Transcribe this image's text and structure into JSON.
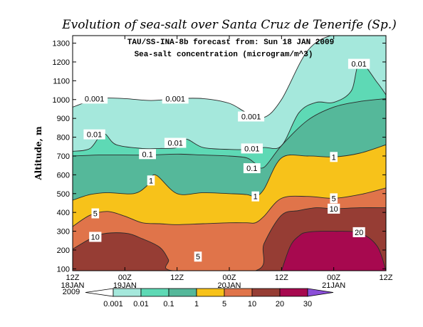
{
  "chart_data": {
    "type": "area",
    "title": "Evolution of sea-salt over Santa Cruz de Tenerife (Sp.)",
    "subtitle_1": "TAU/SS-INA-8b forecast from:  Sun 18 JAN 2009",
    "subtitle_2": "Sea-salt concentration (microgram/m^3)",
    "ylabel": "Altitude, m",
    "ylim": [
      90,
      1340
    ],
    "yticks": [
      "100",
      "200",
      "300",
      "400",
      "500",
      "600",
      "700",
      "800",
      "900",
      "1000",
      "1100",
      "1200",
      "1300"
    ],
    "xlim": [
      0,
      36
    ],
    "xticks": [
      {
        "x": 0,
        "top": "12Z",
        "bottom": "18JAN"
      },
      {
        "x": 6,
        "top": "00Z",
        "bottom": "19JAN"
      },
      {
        "x": 12,
        "top": "12Z",
        "bottom": ""
      },
      {
        "x": 18,
        "top": "00Z",
        "bottom": "20JAN"
      },
      {
        "x": 24,
        "top": "12Z",
        "bottom": ""
      },
      {
        "x": 30,
        "top": "00Z",
        "bottom": "21JAN"
      },
      {
        "x": 36,
        "top": "12Z",
        "bottom": ""
      }
    ],
    "year_label": "2009",
    "levels": [
      "0.001",
      "0.01",
      "0.1",
      "1",
      "5",
      "10",
      "20",
      "30"
    ],
    "level_colors": [
      "#ffffff",
      "#a5e8dc",
      "#5ed9b5",
      "#55b89a",
      "#f7c21a",
      "#e0744a",
      "#963d34",
      "#a7094f",
      "#8b4fd8"
    ],
    "contours": [
      {
        "level": "0.001",
        "color": "#a5e8dc",
        "x": [
          0,
          3,
          6,
          9,
          12,
          15,
          18,
          20,
          22,
          24,
          27,
          30,
          33,
          36
        ],
        "y": [
          960,
          1005,
          1005,
          995,
          1005,
          1005,
          980,
          930,
          905,
          1000,
          1260,
          1345,
          1345,
          1345
        ]
      },
      {
        "level": "0.01",
        "color": "#5ed9b5",
        "x": [
          0,
          2,
          3.5,
          5,
          8,
          10,
          12,
          13,
          15,
          18,
          20,
          22,
          24,
          26,
          28,
          30,
          32,
          33,
          35,
          36
        ],
        "y": [
          725,
          740,
          820,
          760,
          740,
          740,
          745,
          790,
          745,
          735,
          735,
          745,
          755,
          930,
          985,
          985,
          1045,
          1195,
          1090,
          1025
        ]
      },
      {
        "level": "0.1",
        "color": "#55b89a",
        "x": [
          0,
          3,
          6,
          9,
          12,
          15,
          18,
          20,
          21,
          22,
          24,
          27,
          30,
          33,
          36
        ],
        "y": [
          700,
          705,
          705,
          705,
          710,
          705,
          700,
          690,
          660,
          640,
          755,
          890,
          960,
          990,
          1005
        ]
      },
      {
        "level": "1",
        "color": "#f7c21a",
        "x": [
          0,
          2,
          4,
          7,
          8.5,
          9.5,
          12,
          15,
          18,
          20,
          21,
          22,
          24,
          27,
          30,
          33,
          36
        ],
        "y": [
          465,
          495,
          505,
          500,
          540,
          600,
          500,
          505,
          500,
          495,
          485,
          525,
          690,
          700,
          695,
          715,
          760
        ]
      },
      {
        "level": "5",
        "color": "#e0744a",
        "x": [
          0,
          2,
          4,
          6,
          8,
          10,
          12,
          15,
          18,
          20,
          21,
          22,
          24,
          27,
          30,
          33,
          36
        ],
        "y": [
          325,
          385,
          405,
          380,
          345,
          340,
          335,
          340,
          345,
          345,
          345,
          380,
          475,
          485,
          475,
          495,
          530
        ]
      },
      {
        "level": "10",
        "color": "#963d34",
        "x": [
          0,
          3,
          6,
          8,
          10,
          11,
          11.5,
          21,
          22,
          24,
          26,
          28,
          30,
          33,
          36
        ],
        "y": [
          205,
          280,
          290,
          260,
          215,
          150,
          90,
          90,
          235,
          385,
          410,
          425,
          420,
          425,
          425
        ]
      },
      {
        "level": "20",
        "color": "#a7094f",
        "x": [
          24,
          25,
          26,
          27,
          30,
          33,
          35,
          36
        ],
        "y": [
          90,
          220,
          275,
          295,
          300,
          290,
          220,
          90
        ]
      }
    ],
    "contour_labels": [
      {
        "text": "0.001",
        "x": 2.5,
        "y": 1005
      },
      {
        "text": "0.001",
        "x": 11.8,
        "y": 1005
      },
      {
        "text": "0.001",
        "x": 20.5,
        "y": 910
      },
      {
        "text": "0.01",
        "x": 2.5,
        "y": 815
      },
      {
        "text": "0.01",
        "x": 11.8,
        "y": 770
      },
      {
        "text": "0.01",
        "x": 20.6,
        "y": 740
      },
      {
        "text": "0.01",
        "x": 32.9,
        "y": 1190
      },
      {
        "text": "0.1",
        "x": 8.6,
        "y": 710
      },
      {
        "text": "0.1",
        "x": 20.6,
        "y": 635
      },
      {
        "text": "1",
        "x": 9.0,
        "y": 570
      },
      {
        "text": "1",
        "x": 21.0,
        "y": 485
      },
      {
        "text": "1",
        "x": 30.0,
        "y": 695
      },
      {
        "text": "5",
        "x": 2.6,
        "y": 395
      },
      {
        "text": "5",
        "x": 14.4,
        "y": 165
      },
      {
        "text": "5",
        "x": 30.0,
        "y": 475
      },
      {
        "text": "10",
        "x": 2.6,
        "y": 270
      },
      {
        "text": "10",
        "x": 30.0,
        "y": 420
      },
      {
        "text": "20",
        "x": 32.9,
        "y": 295
      }
    ]
  }
}
